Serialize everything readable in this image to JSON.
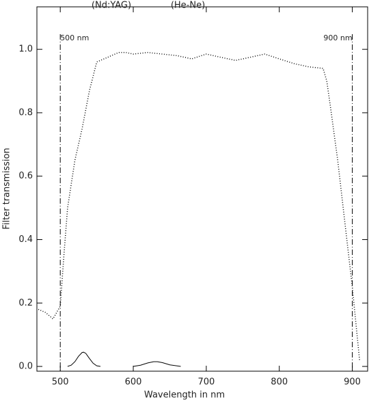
{
  "chart_data": {
    "type": "line",
    "x_label": "Wavelength in nm",
    "y_label": "Filter transmission",
    "annotations": [
      "(Nd:YAG)",
      "(He-Ne)"
    ],
    "vlines": [
      {
        "x": 500,
        "label": "500 nm"
      },
      {
        "x": 900,
        "label": "900 nm"
      }
    ],
    "xlim": [
      468,
      921
    ],
    "ylim": [
      -0.015,
      1.134
    ],
    "xticks": [
      500,
      600,
      700,
      800,
      900
    ],
    "yticks": [
      {
        "value": 0,
        "label": "0.0"
      },
      0.2,
      0.4,
      0.6,
      0.8,
      {
        "value": 1,
        "label": "1.0"
      }
    ],
    "series": [
      {
        "color": "#000000",
        "style": "dotted",
        "x": [
          470,
          480,
          490,
          500,
          505,
          510,
          520,
          530,
          540,
          550,
          560,
          570,
          580,
          590,
          600,
          620,
          640,
          660,
          680,
          700,
          720,
          740,
          760,
          780,
          800,
          820,
          840,
          860,
          865,
          870,
          880,
          890,
          900,
          910
        ],
        "values": [
          0.18,
          0.17,
          0.15,
          0.19,
          0.35,
          0.5,
          0.65,
          0.75,
          0.87,
          0.96,
          0.97,
          0.98,
          0.99,
          0.99,
          0.985,
          0.99,
          0.985,
          0.98,
          0.97,
          0.985,
          0.975,
          0.965,
          0.975,
          0.985,
          0.97,
          0.955,
          0.945,
          0.94,
          0.9,
          0.82,
          0.65,
          0.45,
          0.25,
          0.02
        ]
      },
      {
        "color": "#000000",
        "style": "solid",
        "x": [
          510,
          515,
          520,
          525,
          530,
          532,
          535,
          540,
          545,
          550,
          555
        ],
        "values": [
          0,
          0.004,
          0.015,
          0.032,
          0.044,
          0.045,
          0.041,
          0.025,
          0.01,
          0.002,
          0
        ]
      },
      {
        "color": "#000000",
        "style": "solid",
        "x": [
          600,
          610,
          620,
          628,
          633,
          640,
          650,
          665
        ],
        "values": [
          0,
          0.004,
          0.011,
          0.015,
          0.015,
          0.012,
          0.005,
          0
        ]
      }
    ]
  }
}
